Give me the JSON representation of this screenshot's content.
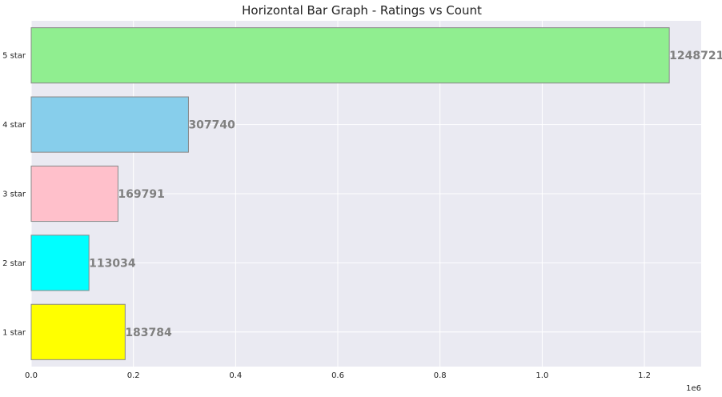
{
  "chart_data": {
    "type": "bar",
    "orientation": "horizontal",
    "title": "Horizontal Bar Graph - Ratings vs Count",
    "xlabel": "",
    "ylabel": "",
    "categories": [
      "1 star",
      "2 star",
      "3 star",
      "4 star",
      "5 star"
    ],
    "values": [
      183784,
      113034,
      169791,
      307740,
      1248721
    ],
    "data_labels": [
      "183784",
      "113034",
      "169791",
      "307740",
      "1248721"
    ],
    "bar_colors": [
      "#ffff00",
      "#00ffff",
      "#ffc0cb",
      "#87ceeb",
      "#90ee90"
    ],
    "xlim": [
      0,
      1311157
    ],
    "x_ticks": [
      0,
      200000,
      400000,
      600000,
      800000,
      1000000,
      1200000
    ],
    "x_tick_labels": [
      "0.0",
      "0.2",
      "0.4",
      "0.6",
      "0.8",
      "1.0",
      "1.2"
    ],
    "x_offset_text": "1e6",
    "grid": true,
    "legend": "none",
    "colors": {
      "plot_background": "#eaeaf2",
      "grid": "#ffffff",
      "value_label": "#808080",
      "bar_edge": "#888888"
    }
  }
}
